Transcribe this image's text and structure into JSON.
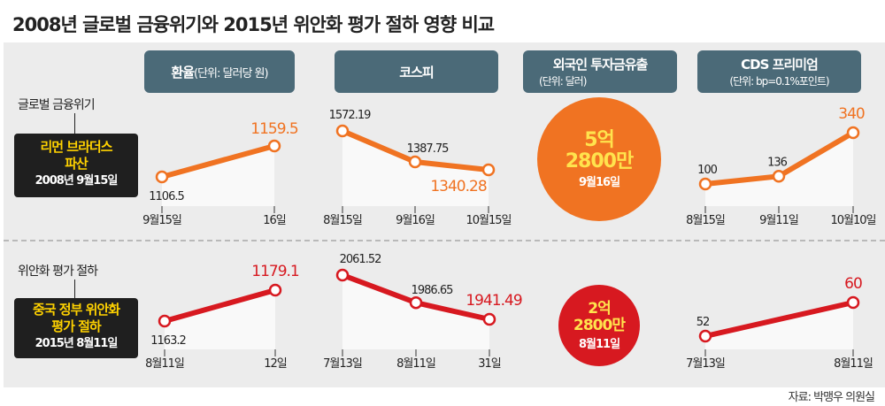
{
  "title": "2008년 글로벌 금융위기와 2015년 위안화 평가 절하 영향 비교",
  "source": "자료: 박맹우 의원실",
  "headers": [
    {
      "main": "환율",
      "unit": "(단위: 달러당 원)"
    },
    {
      "main": "코스피",
      "unit": ""
    },
    {
      "main": "외국인 투자금유출",
      "unit": "(단위: 달러)"
    },
    {
      "main": "CDS 프리미엄",
      "unit": "(단위: bp=0.1%포인트)"
    }
  ],
  "rows": [
    {
      "label": "글로벌 금융위기",
      "event_line1": "리먼 브라더스",
      "event_line2": "파산",
      "event_date": "2008년 9월15일",
      "color": "#f07322"
    },
    {
      "label": "위안화 평가 절하",
      "event_line1": "중국 정부 위안화",
      "event_line2": "평가 절하",
      "event_date": "2015년 8월11일",
      "color": "#d71920"
    }
  ],
  "outflow": [
    {
      "amount1": "5억",
      "amount2": "2800만",
      "date": "9월16일",
      "color": "#f07322"
    },
    {
      "amount1": "2억",
      "amount2": "2800만",
      "date": "8월11일",
      "color": "#d71920"
    }
  ],
  "chart_data": [
    {
      "type": "line",
      "title": "환율",
      "ylabel": "달러당 원",
      "row": 0,
      "categories": [
        "9월15일",
        "16일"
      ],
      "values": [
        1106.5,
        1159.5
      ],
      "labels": [
        "1106.5",
        "1159.5"
      ]
    },
    {
      "type": "line",
      "title": "코스피",
      "ylabel": "",
      "row": 0,
      "categories": [
        "8월15일",
        "9월16일",
        "10월15일"
      ],
      "values": [
        1572.19,
        1387.75,
        1340.28
      ],
      "labels": [
        "1572.19",
        "1387.75",
        "1340.28"
      ]
    },
    {
      "type": "line",
      "title": "CDS 프리미엄",
      "ylabel": "bp",
      "row": 0,
      "categories": [
        "8월15일",
        "9월11일",
        "10월10일"
      ],
      "values": [
        100,
        136,
        340
      ],
      "labels": [
        "100",
        "136",
        "340"
      ]
    },
    {
      "type": "line",
      "title": "환율",
      "ylabel": "달러당 원",
      "row": 1,
      "categories": [
        "8월11일",
        "12일"
      ],
      "values": [
        1163.2,
        1179.1
      ],
      "labels": [
        "1163.2",
        "1179.1"
      ]
    },
    {
      "type": "line",
      "title": "코스피",
      "ylabel": "",
      "row": 1,
      "categories": [
        "7월13일",
        "8월11일",
        "31일"
      ],
      "values": [
        2061.52,
        1986.65,
        1941.49
      ],
      "labels": [
        "2061.52",
        "1986.65",
        "1941.49"
      ]
    },
    {
      "type": "line",
      "title": "CDS 프리미엄",
      "ylabel": "bp",
      "row": 1,
      "categories": [
        "7월13일",
        "8월11일"
      ],
      "values": [
        52,
        60
      ],
      "labels": [
        "52",
        "60"
      ]
    }
  ]
}
